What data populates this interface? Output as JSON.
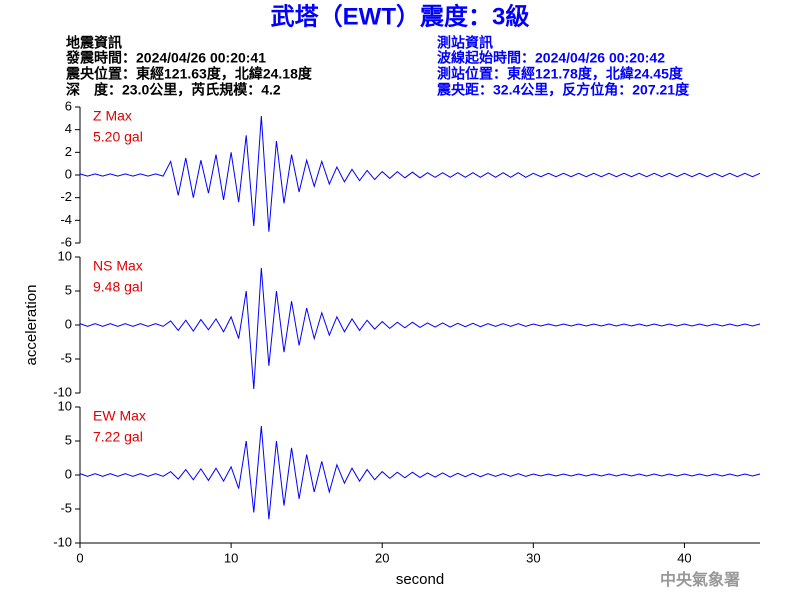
{
  "header": {
    "title": "武塔（EWT）震度：3級",
    "left": [
      "地震資訊",
      "發震時間：2024/04/26 00:20:41",
      "震央位置：東經121.63度，北緯24.18度",
      "深　度：23.0公里，芮氏規模：4.2"
    ],
    "right": [
      "測站資訊",
      "波線起始時間：2024/04/26 00:20:42",
      "測站位置：東經121.78度，北緯24.45度",
      "震央距：32.4公里，反方位角：207.21度"
    ]
  },
  "footer": "中央氣象署",
  "chart_data": [
    {
      "type": "line",
      "label": "Z Max",
      "max_label": "5.20 gal",
      "label_color": "#e00000",
      "color": "#0000ff",
      "xlim": [
        0,
        45
      ],
      "ylim": [
        -6,
        6
      ],
      "yticks": [
        -6,
        -4,
        -2,
        0,
        2,
        4,
        6
      ],
      "x": [
        0,
        0.5,
        1,
        1.5,
        2,
        2.5,
        3,
        3.5,
        4,
        4.5,
        5,
        5.5,
        6,
        6.5,
        7,
        7.5,
        8,
        8.5,
        9,
        9.5,
        10,
        10.5,
        11,
        11.5,
        12,
        12.5,
        13,
        13.5,
        14,
        14.5,
        15,
        15.5,
        16,
        16.5,
        17,
        17.5,
        18,
        18.5,
        19,
        19.5,
        20,
        20.5,
        21,
        21.5,
        22,
        22.5,
        23,
        23.5,
        24,
        24.5,
        25,
        25.5,
        26,
        26.5,
        27,
        27.5,
        28,
        28.5,
        29,
        29.5,
        30,
        30.5,
        31,
        31.5,
        32,
        32.5,
        33,
        33.5,
        34,
        34.5,
        35,
        35.5,
        36,
        36.5,
        37,
        37.5,
        38,
        38.5,
        39,
        39.5,
        40,
        40.5,
        41,
        41.5,
        42,
        42.5,
        43,
        43.5,
        44,
        44.5,
        45
      ],
      "values": [
        0.1,
        -0.1,
        0.1,
        -0.1,
        0.1,
        -0.1,
        0.1,
        -0.1,
        0.1,
        -0.1,
        0.1,
        -0.1,
        1.2,
        -1.8,
        1.5,
        -2.0,
        1.3,
        -1.6,
        1.8,
        -2.2,
        2.0,
        -2.4,
        3.5,
        -4.5,
        5.2,
        -5.0,
        3.0,
        -2.5,
        1.8,
        -1.5,
        1.3,
        -1.0,
        1.2,
        -0.8,
        0.7,
        -0.6,
        0.5,
        -0.5,
        0.4,
        -0.4,
        0.3,
        -0.3,
        0.3,
        -0.25,
        0.25,
        -0.25,
        0.2,
        -0.2,
        0.2,
        -0.2,
        0.2,
        -0.2,
        0.2,
        -0.2,
        0.2,
        -0.2,
        0.2,
        -0.2,
        0.2,
        -0.2,
        0.15,
        -0.15,
        0.15,
        -0.15,
        0.15,
        -0.15,
        0.15,
        -0.15,
        0.15,
        -0.15,
        0.15,
        -0.15,
        0.15,
        -0.15,
        0.15,
        -0.15,
        0.15,
        -0.15,
        0.15,
        -0.15,
        0.15,
        -0.15,
        0.15,
        -0.15,
        0.15,
        -0.15,
        0.15,
        -0.15,
        0.15,
        -0.15,
        0.15
      ]
    },
    {
      "type": "line",
      "label": "NS Max",
      "max_label": "9.48 gal",
      "label_color": "#e00000",
      "color": "#0000ff",
      "ylabel": "acceleration",
      "xlim": [
        0,
        45
      ],
      "ylim": [
        -10,
        10
      ],
      "yticks": [
        -10,
        -5,
        0,
        5,
        10
      ],
      "x": [
        0,
        0.5,
        1,
        1.5,
        2,
        2.5,
        3,
        3.5,
        4,
        4.5,
        5,
        5.5,
        6,
        6.5,
        7,
        7.5,
        8,
        8.5,
        9,
        9.5,
        10,
        10.5,
        11,
        11.5,
        12,
        12.5,
        13,
        13.5,
        14,
        14.5,
        15,
        15.5,
        16,
        16.5,
        17,
        17.5,
        18,
        18.5,
        19,
        19.5,
        20,
        20.5,
        21,
        21.5,
        22,
        22.5,
        23,
        23.5,
        24,
        24.5,
        25,
        25.5,
        26,
        26.5,
        27,
        27.5,
        28,
        28.5,
        29,
        29.5,
        30,
        30.5,
        31,
        31.5,
        32,
        32.5,
        33,
        33.5,
        34,
        34.5,
        35,
        35.5,
        36,
        36.5,
        37,
        37.5,
        38,
        38.5,
        39,
        39.5,
        40,
        40.5,
        41,
        41.5,
        42,
        42.5,
        43,
        43.5,
        44,
        44.5,
        45
      ],
      "values": [
        0.2,
        -0.2,
        0.2,
        -0.2,
        0.2,
        -0.2,
        0.2,
        -0.2,
        0.2,
        -0.2,
        0.2,
        -0.2,
        0.6,
        -0.8,
        0.7,
        -0.9,
        0.8,
        -0.7,
        0.9,
        -1.0,
        1.2,
        -2.0,
        5.0,
        -9.4,
        8.4,
        -6.0,
        5.0,
        -4.0,
        3.5,
        -3.0,
        2.5,
        -2.0,
        1.8,
        -1.5,
        1.2,
        -1.0,
        0.9,
        -0.8,
        0.7,
        -0.6,
        0.5,
        -0.5,
        0.4,
        -0.4,
        0.4,
        -0.35,
        0.3,
        -0.3,
        0.3,
        -0.3,
        0.25,
        -0.25,
        0.25,
        -0.25,
        0.2,
        -0.2,
        0.2,
        -0.2,
        0.2,
        -0.2,
        0.15,
        -0.15,
        0.15,
        -0.15,
        0.15,
        -0.15,
        0.15,
        -0.15,
        0.15,
        -0.15,
        0.15,
        -0.15,
        0.15,
        -0.15,
        0.15,
        -0.15,
        0.15,
        -0.15,
        0.15,
        -0.15,
        0.15,
        -0.15,
        0.15,
        -0.15,
        0.15,
        -0.15,
        0.15,
        -0.15,
        0.15,
        -0.15,
        0.15
      ]
    },
    {
      "type": "line",
      "label": "EW Max",
      "max_label": "7.22 gal",
      "label_color": "#e00000",
      "color": "#0000ff",
      "xlabel": "second",
      "xlim": [
        0,
        45
      ],
      "xticks": [
        0,
        10,
        20,
        30,
        40
      ],
      "ylim": [
        -10,
        10
      ],
      "yticks": [
        -10,
        -5,
        0,
        5,
        10
      ],
      "x": [
        0,
        0.5,
        1,
        1.5,
        2,
        2.5,
        3,
        3.5,
        4,
        4.5,
        5,
        5.5,
        6,
        6.5,
        7,
        7.5,
        8,
        8.5,
        9,
        9.5,
        10,
        10.5,
        11,
        11.5,
        12,
        12.5,
        13,
        13.5,
        14,
        14.5,
        15,
        15.5,
        16,
        16.5,
        17,
        17.5,
        18,
        18.5,
        19,
        19.5,
        20,
        20.5,
        21,
        21.5,
        22,
        22.5,
        23,
        23.5,
        24,
        24.5,
        25,
        25.5,
        26,
        26.5,
        27,
        27.5,
        28,
        28.5,
        29,
        29.5,
        30,
        30.5,
        31,
        31.5,
        32,
        32.5,
        33,
        33.5,
        34,
        34.5,
        35,
        35.5,
        36,
        36.5,
        37,
        37.5,
        38,
        38.5,
        39,
        39.5,
        40,
        40.5,
        41,
        41.5,
        42,
        42.5,
        43,
        43.5,
        44,
        44.5,
        45
      ],
      "values": [
        0.2,
        -0.2,
        0.2,
        -0.2,
        0.2,
        -0.2,
        0.2,
        -0.2,
        0.2,
        -0.2,
        0.2,
        -0.2,
        0.5,
        -0.6,
        0.8,
        -0.7,
        0.9,
        -0.8,
        1.0,
        -0.9,
        1.2,
        -2.0,
        5.0,
        -5.5,
        7.2,
        -6.5,
        5.0,
        -4.5,
        4.0,
        -3.5,
        3.0,
        -2.5,
        2.0,
        -2.5,
        1.5,
        -1.2,
        1.0,
        -0.9,
        0.8,
        -0.7,
        0.5,
        -0.5,
        0.4,
        -0.4,
        0.4,
        -0.35,
        0.3,
        -0.3,
        0.3,
        -0.3,
        0.25,
        -0.25,
        0.25,
        -0.25,
        0.2,
        -0.2,
        0.2,
        -0.2,
        0.2,
        -0.2,
        0.15,
        -0.15,
        0.15,
        -0.15,
        0.15,
        -0.15,
        0.15,
        -0.15,
        0.15,
        -0.15,
        0.15,
        -0.15,
        0.15,
        -0.15,
        0.15,
        -0.15,
        0.15,
        -0.15,
        0.15,
        -0.15,
        0.15,
        -0.15,
        0.15,
        -0.15,
        0.15,
        -0.15,
        0.15,
        -0.15,
        0.15,
        -0.15,
        0.15
      ]
    }
  ]
}
